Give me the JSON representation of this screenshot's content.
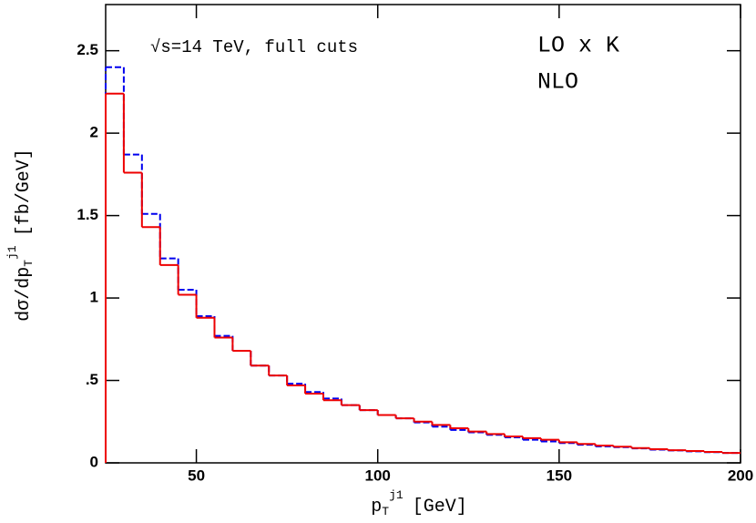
{
  "chart_data": {
    "type": "histogram",
    "annotation": "√s=14 TeV, full cuts",
    "x_label": {
      "main": "p",
      "sub": "T",
      "sup": "j1",
      "unit": "[GeV]"
    },
    "y_label": {
      "main": "dσ/dp",
      "sub": "T",
      "sup": "j1",
      "unit": "[fb/GeV]"
    },
    "bins": [
      25,
      30,
      35,
      40,
      45,
      50,
      55,
      60,
      65,
      70,
      75,
      80,
      85,
      90,
      95,
      100,
      105,
      110,
      115,
      120,
      125,
      130,
      135,
      140,
      145,
      150,
      155,
      160,
      165,
      170,
      175,
      180,
      185,
      190,
      195,
      200
    ],
    "series": [
      {
        "name": "LO x K",
        "color": "#0000ee",
        "linestyle": "dashed",
        "values": [
          2.4,
          1.87,
          1.51,
          1.24,
          1.05,
          0.89,
          0.77,
          0.68,
          0.59,
          0.53,
          0.48,
          0.43,
          0.39,
          0.35,
          0.32,
          0.29,
          0.27,
          0.245,
          0.22,
          0.2,
          0.185,
          0.17,
          0.155,
          0.14,
          0.13,
          0.12,
          0.11,
          0.1,
          0.095,
          0.088,
          0.08,
          0.075,
          0.07,
          0.065,
          0.06
        ]
      },
      {
        "name": "NLO",
        "color": "#ee0000",
        "linestyle": "solid",
        "values": [
          2.24,
          1.76,
          1.43,
          1.2,
          1.02,
          0.88,
          0.76,
          0.68,
          0.59,
          0.53,
          0.47,
          0.42,
          0.38,
          0.35,
          0.32,
          0.29,
          0.27,
          0.25,
          0.23,
          0.21,
          0.19,
          0.175,
          0.16,
          0.15,
          0.14,
          0.125,
          0.115,
          0.105,
          0.098,
          0.09,
          0.083,
          0.077,
          0.072,
          0.066,
          0.06
        ]
      }
    ],
    "xlim": [
      25,
      200
    ],
    "ylim": [
      0,
      2.78
    ],
    "xticks": [
      50,
      100,
      150,
      200
    ],
    "yticks": [
      0,
      {
        "value": 0.5,
        "label": ".5"
      },
      1,
      1.5,
      2,
      2.5
    ]
  }
}
